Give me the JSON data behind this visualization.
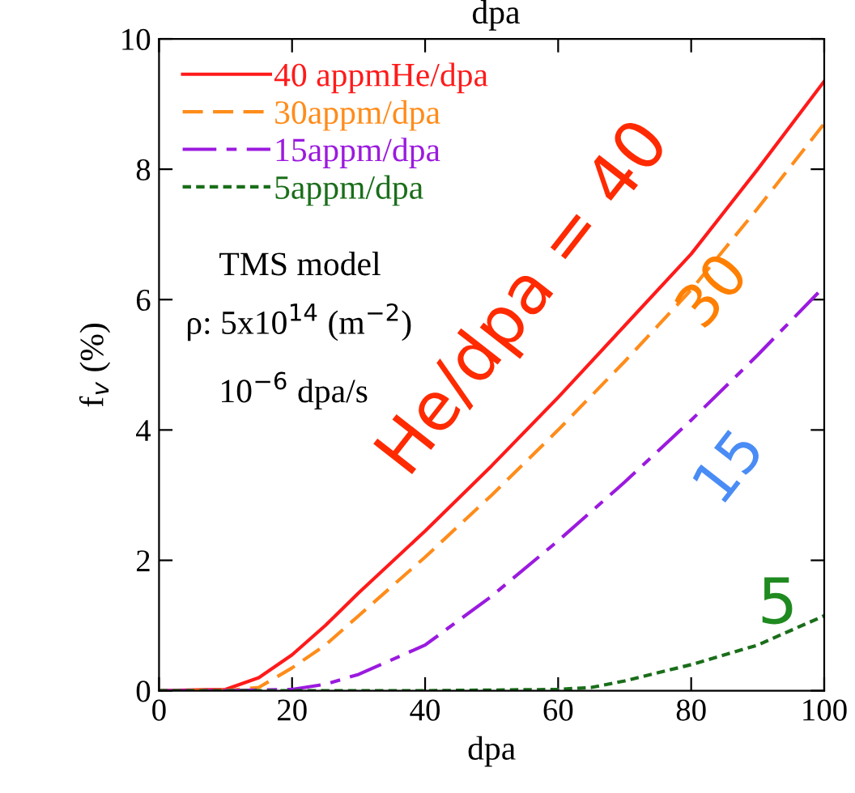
{
  "chart_data": {
    "type": "line",
    "xlabel": "dpa",
    "ylabel": "f$_{v}$ (%)",
    "xlim": [
      0,
      100
    ],
    "ylim": [
      0,
      10
    ],
    "xticks": [
      0,
      20,
      40,
      60,
      80,
      100
    ],
    "yticks": [
      0,
      2,
      4,
      6,
      8,
      10
    ],
    "grid": false,
    "legend": "top left",
    "marker": "none",
    "series": [
      {
        "name": "40 appmHe/dpa",
        "color": "#ff1a1a",
        "line_style": "solid",
        "x": [
          0,
          10,
          15,
          20,
          25,
          30,
          40,
          50,
          60,
          70,
          80,
          90,
          100
        ],
        "values": [
          0,
          0.02,
          0.2,
          0.55,
          1.0,
          1.5,
          2.45,
          3.45,
          4.5,
          5.6,
          6.7,
          8.0,
          9.35
        ]
      },
      {
        "name": "30appm/dpa",
        "color": "#ff8c1a",
        "line_style": "dashed",
        "x": [
          0,
          10,
          15,
          20,
          25,
          30,
          40,
          50,
          60,
          70,
          80,
          90,
          100
        ],
        "values": [
          0,
          0,
          0.05,
          0.35,
          0.7,
          1.15,
          2.05,
          3.0,
          4.0,
          5.05,
          6.15,
          7.4,
          8.7
        ]
      },
      {
        "name": "15appm/dpa",
        "color": "#9b1adf",
        "line_style": "dashed",
        "x": [
          0,
          10,
          20,
          25,
          30,
          40,
          50,
          60,
          70,
          80,
          90,
          100
        ],
        "values": [
          0,
          0,
          0.02,
          0.1,
          0.25,
          0.7,
          1.45,
          2.3,
          3.2,
          4.15,
          5.15,
          6.2
        ]
      },
      {
        "name": "5appm/dpa",
        "color": "#1a6e1a",
        "line_style": "dotted",
        "x": [
          0,
          20,
          40,
          60,
          65,
          70,
          80,
          90,
          100
        ],
        "values": [
          0,
          0,
          0,
          0.02,
          0.05,
          0.15,
          0.4,
          0.7,
          1.15
        ]
      }
    ],
    "annotations": [
      "He/dpa = 40",
      "30",
      "15",
      "5",
      "TMS model",
      "ρ: 5x10$^{14}$ (m$^{−2}$)",
      "10$^{−6}$ dpa/s",
      "dpa"
    ]
  }
}
